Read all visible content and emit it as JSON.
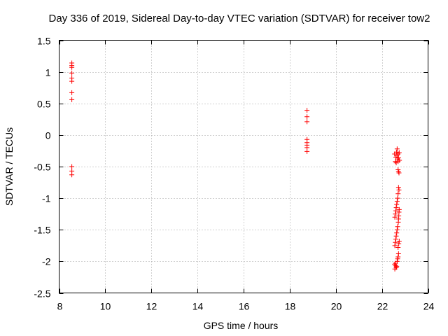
{
  "chart_data": {
    "type": "scatter",
    "title": "Day 336 of 2019, Sidereal Day-to-day VTEC variation (SDTVAR) for receiver tow2",
    "xlabel": "GPS time / hours",
    "ylabel": "SDTVAR / TECUs",
    "xlim": [
      8,
      24
    ],
    "ylim": [
      -2.5,
      1.5
    ],
    "xticks": [
      8,
      10,
      12,
      14,
      16,
      18,
      20,
      22,
      24
    ],
    "xtick_labels": [
      "8",
      "10",
      "12",
      "14",
      "16",
      "18",
      "20",
      "22",
      "24"
    ],
    "yticks": [
      1.5,
      1,
      0.5,
      0,
      -0.5,
      -1,
      -1.5,
      -2,
      -2.5
    ],
    "ytick_labels": [
      "1.5",
      "1",
      "0.5",
      "0",
      "-0.5",
      "-1",
      "-1.5",
      "-2",
      "-2.5"
    ],
    "grid": true,
    "marker": "plus",
    "color": "#ff0000",
    "series": [
      {
        "name": "SDTVAR",
        "points": [
          [
            8.55,
            1.14
          ],
          [
            8.55,
            1.1
          ],
          [
            8.55,
            1.07
          ],
          [
            8.55,
            0.98
          ],
          [
            8.55,
            0.9
          ],
          [
            8.55,
            0.85
          ],
          [
            8.55,
            0.67
          ],
          [
            8.55,
            0.56
          ],
          [
            8.55,
            -0.5
          ],
          [
            8.55,
            -0.57
          ],
          [
            8.55,
            -0.63
          ],
          [
            18.75,
            0.39
          ],
          [
            18.75,
            0.29
          ],
          [
            18.75,
            0.21
          ],
          [
            18.75,
            -0.07
          ],
          [
            18.75,
            -0.12
          ],
          [
            18.75,
            -0.16
          ],
          [
            18.75,
            -0.2
          ],
          [
            18.75,
            -0.26
          ],
          [
            22.55,
            -0.3
          ],
          [
            22.6,
            -0.35
          ],
          [
            22.58,
            -0.42
          ],
          [
            22.63,
            -0.27
          ],
          [
            22.65,
            -0.32
          ],
          [
            22.68,
            -0.38
          ],
          [
            22.7,
            -0.3
          ],
          [
            22.72,
            -0.36
          ],
          [
            22.75,
            -0.28
          ],
          [
            22.76,
            -0.4
          ],
          [
            22.62,
            -0.44
          ],
          [
            22.66,
            -0.22
          ],
          [
            22.7,
            -0.42
          ],
          [
            22.7,
            -0.55
          ],
          [
            22.72,
            -0.58
          ],
          [
            22.74,
            -0.6
          ],
          [
            22.72,
            -0.83
          ],
          [
            22.74,
            -0.87
          ],
          [
            22.7,
            -0.93
          ],
          [
            22.68,
            -1.0
          ],
          [
            22.66,
            -1.05
          ],
          [
            22.64,
            -1.1
          ],
          [
            22.62,
            -1.15
          ],
          [
            22.6,
            -1.2
          ],
          [
            22.58,
            -1.25
          ],
          [
            22.56,
            -1.3
          ],
          [
            22.75,
            -1.18
          ],
          [
            22.74,
            -1.22
          ],
          [
            22.73,
            -1.28
          ],
          [
            22.72,
            -1.33
          ],
          [
            22.71,
            -1.38
          ],
          [
            22.68,
            -1.45
          ],
          [
            22.66,
            -1.5
          ],
          [
            22.64,
            -1.55
          ],
          [
            22.62,
            -1.6
          ],
          [
            22.6,
            -1.65
          ],
          [
            22.58,
            -1.7
          ],
          [
            22.56,
            -1.75
          ],
          [
            22.75,
            -1.68
          ],
          [
            22.73,
            -1.72
          ],
          [
            22.7,
            -1.78
          ],
          [
            22.72,
            -1.88
          ],
          [
            22.7,
            -1.93
          ],
          [
            22.68,
            -1.96
          ],
          [
            22.58,
            -2.03
          ],
          [
            22.6,
            -2.07
          ],
          [
            22.62,
            -2.1
          ],
          [
            22.56,
            -2.12
          ],
          [
            22.64,
            -2.08
          ],
          [
            22.66,
            -2.0
          ],
          [
            22.55,
            -2.05
          ]
        ]
      }
    ]
  }
}
